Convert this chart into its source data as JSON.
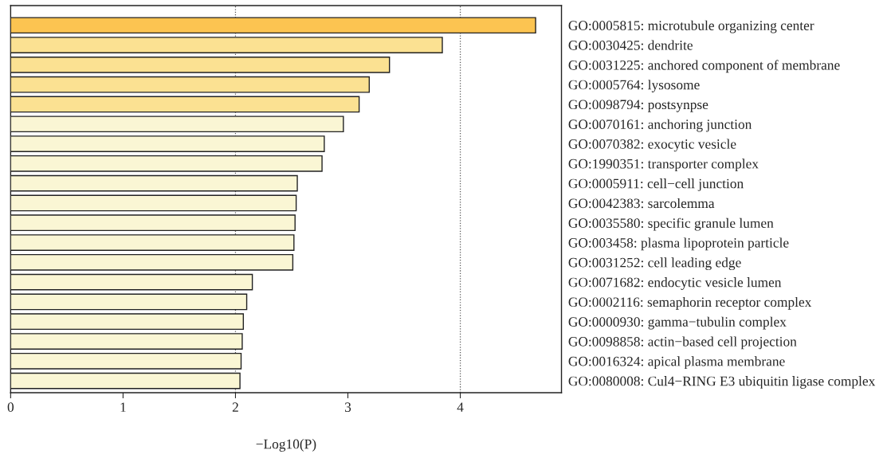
{
  "chart_data": {
    "type": "bar",
    "orientation": "horizontal",
    "xlabel": "−Log10(P)",
    "categories": [
      "GO:0005815: microtubule organizing center",
      "GO:0030425: dendrite",
      "GO:0031225: anchored component of membrane",
      "GO:0005764: lysosome",
      "GO:0098794: postsynpse",
      "GO:0070161: anchoring junction",
      "GO:0070382: exocytic vesicle",
      "GO:1990351: transporter complex",
      "GO:0005911: cell−cell junction",
      "GO:0042383: sarcolemma",
      "GO:0035580: specific granule lumen",
      "GO:003458: plasma lipoprotein particle",
      "GO:0031252: cell leading edge",
      "GO:0071682: endocytic vesicle lumen",
      "GO:0002116: semaphorin receptor complex",
      "GO:0000930: gamma−tubulin complex",
      "GO:0098858: actin−based cell projection",
      "GO:0016324: apical plasma membrane",
      "GO:0080008: Cul4−RING E3 ubiquitin ligase complex"
    ],
    "values": [
      4.67,
      3.84,
      3.37,
      3.19,
      3.1,
      2.96,
      2.79,
      2.77,
      2.55,
      2.54,
      2.53,
      2.52,
      2.51,
      2.15,
      2.1,
      2.07,
      2.06,
      2.05,
      2.04
    ],
    "colors": [
      "#fcc451",
      "#fbe192",
      "#fbe192",
      "#fbe192",
      "#fbe192",
      "#faf6d4",
      "#faf6d4",
      "#faf6d4",
      "#faf6d4",
      "#faf6d4",
      "#faf6d4",
      "#faf6d4",
      "#faf6d4",
      "#faf6d4",
      "#faf6d4",
      "#faf6d4",
      "#faf6d4",
      "#faf6d4",
      "#faf6d4"
    ],
    "xlim": [
      0,
      4.9
    ],
    "xticks": [
      0,
      1,
      2,
      3,
      4
    ],
    "grid": false,
    "legend": false,
    "ref_lines": [
      {
        "axis": "x",
        "value": 2,
        "line_style": "dotted",
        "color": "#555555"
      },
      {
        "axis": "x",
        "value": 4,
        "line_style": "dotted",
        "color": "#555555"
      }
    ]
  }
}
